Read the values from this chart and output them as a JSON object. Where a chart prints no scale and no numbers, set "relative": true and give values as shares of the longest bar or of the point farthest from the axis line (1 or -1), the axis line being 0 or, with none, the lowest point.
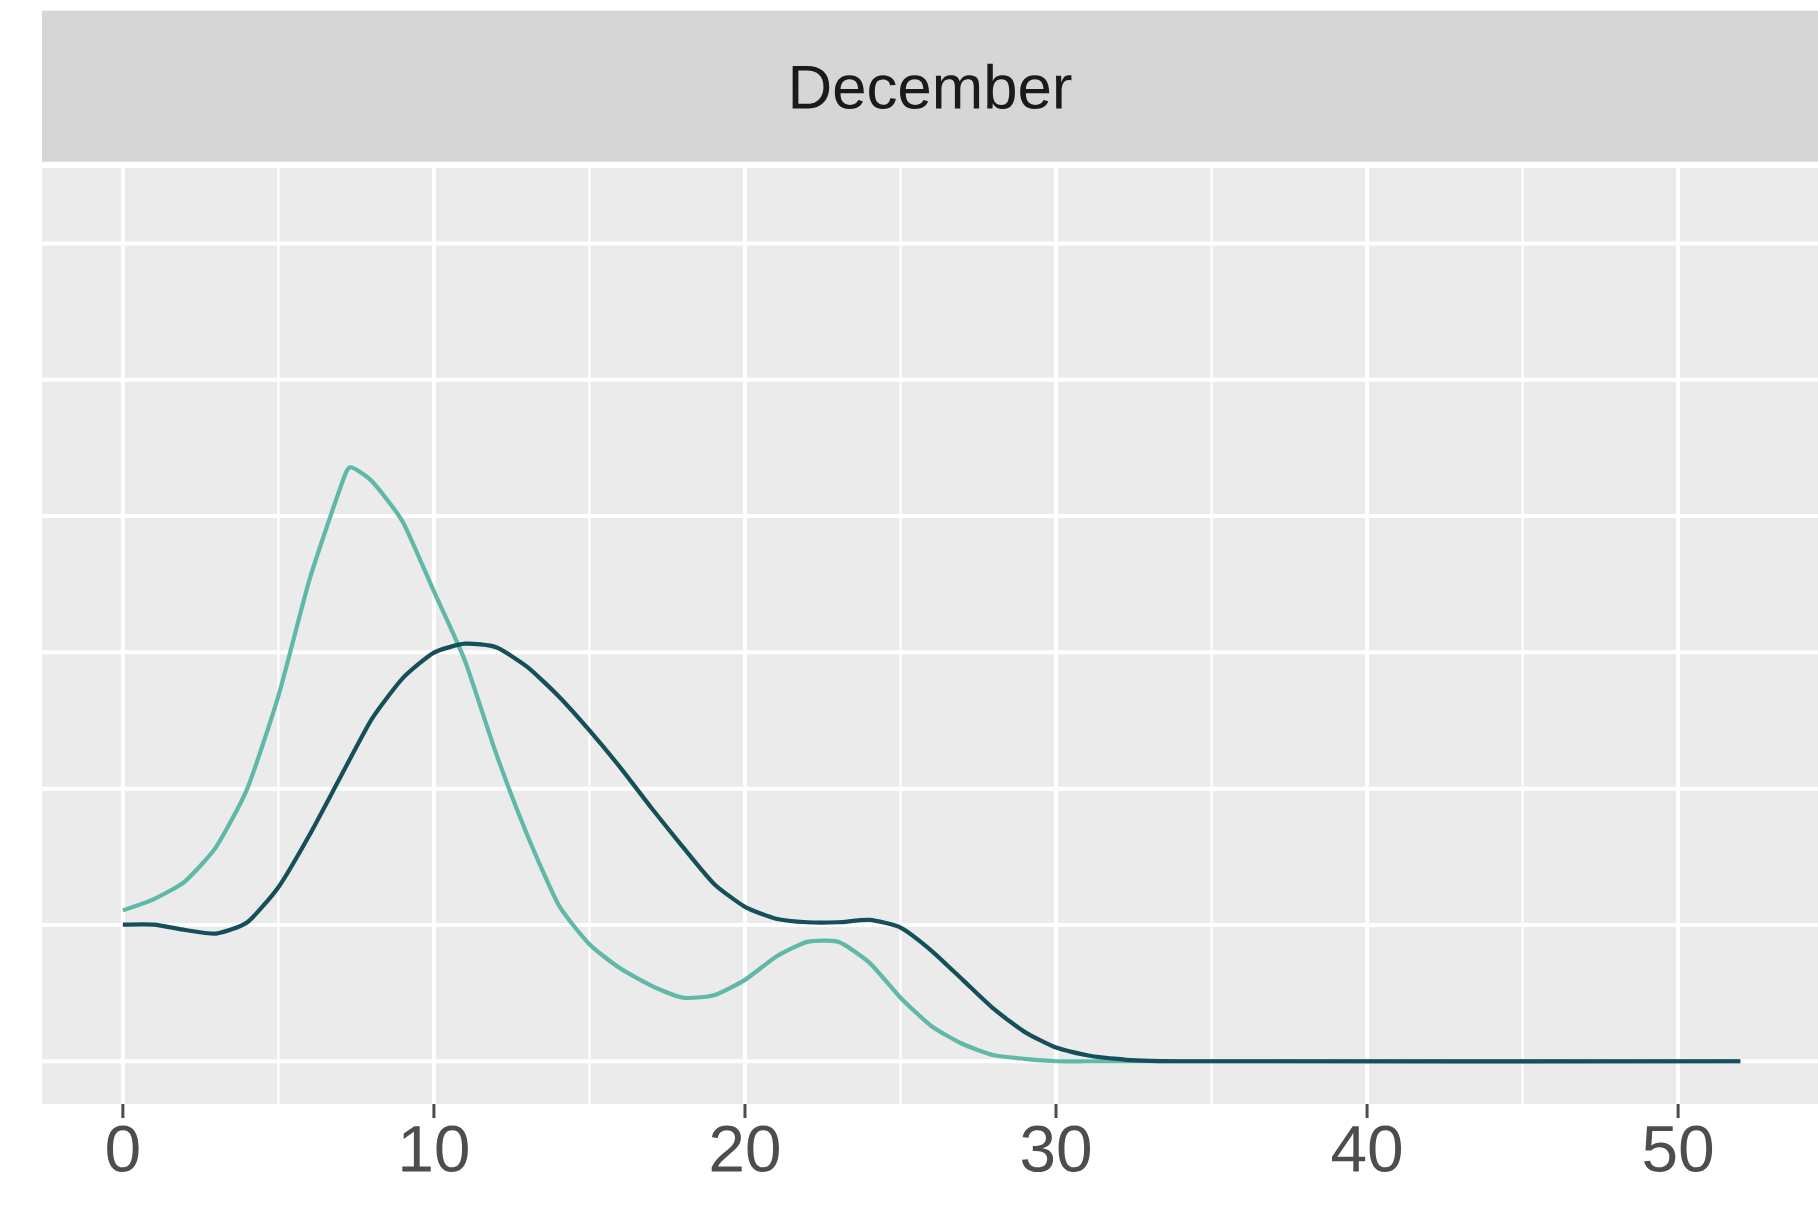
{
  "chart_data": {
    "type": "line",
    "title": "December",
    "relative": true,
    "grid": true,
    "xlim": [
      -2.6,
      54.5
    ],
    "xticks": [
      0,
      10,
      20,
      30,
      40,
      50
    ],
    "x": [
      0,
      1,
      2,
      3,
      4,
      5,
      6,
      7,
      8,
      9,
      10,
      11,
      12,
      13,
      14,
      15,
      16,
      17,
      18,
      19,
      20,
      21,
      22,
      23,
      24,
      25,
      26,
      27,
      28,
      29,
      30,
      31,
      32,
      34,
      52
    ],
    "series": [
      {
        "color": "#5fb8a8",
        "x": [
          0,
          1,
          2,
          3,
          4,
          5,
          6,
          7,
          7.3,
          8,
          9,
          10,
          11,
          12,
          13,
          14,
          15,
          16,
          17,
          18,
          19,
          20,
          21,
          22,
          23,
          24,
          25,
          26,
          27,
          28,
          29,
          30,
          31,
          32,
          34,
          52
        ],
        "values": [
          0.254,
          0.273,
          0.303,
          0.361,
          0.459,
          0.615,
          0.811,
          0.967,
          1.0,
          0.977,
          0.908,
          0.791,
          0.674,
          0.518,
          0.381,
          0.264,
          0.197,
          0.156,
          0.127,
          0.107,
          0.111,
          0.137,
          0.176,
          0.201,
          0.201,
          0.166,
          0.107,
          0.059,
          0.029,
          0.01,
          0.004,
          0.0,
          0.0,
          0.0,
          0.0,
          0.0
        ]
      },
      {
        "color": "#154f5a",
        "values": [
          0.23,
          0.23,
          0.221,
          0.215,
          0.234,
          0.293,
          0.381,
          0.479,
          0.576,
          0.645,
          0.688,
          0.703,
          0.697,
          0.664,
          0.615,
          0.557,
          0.494,
          0.426,
          0.361,
          0.299,
          0.26,
          0.24,
          0.234,
          0.234,
          0.238,
          0.225,
          0.186,
          0.137,
          0.088,
          0.049,
          0.023,
          0.01,
          0.004,
          0.0,
          0.0
        ]
      }
    ]
  }
}
